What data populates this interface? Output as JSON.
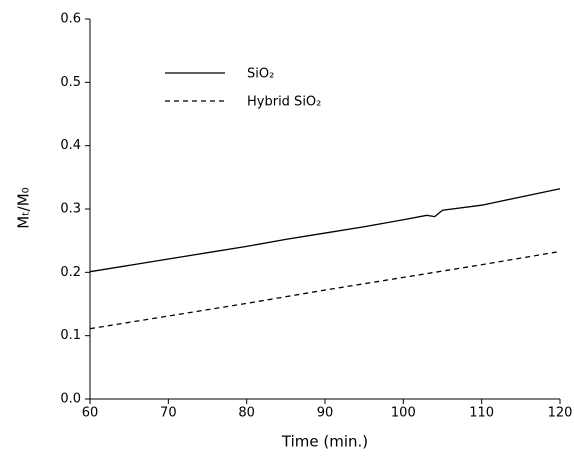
{
  "chart_data": {
    "type": "line",
    "x_label": "Time (min.)",
    "y_label": "Mₜ/M₀",
    "xlim": [
      60,
      120
    ],
    "xticks": [
      60,
      70,
      80,
      90,
      100,
      110,
      120
    ],
    "ylim": [
      0,
      0.6
    ],
    "yticks": [
      {
        "value": 0,
        "label": "0.0"
      },
      0.1,
      0.2,
      0.3,
      0.4,
      0.5,
      0.6
    ],
    "grid": false,
    "legend": "upper left",
    "series": [
      {
        "name": "SiO₂",
        "color": "#000000",
        "dash": "solid",
        "x": [
          60,
          65,
          70,
          75,
          80,
          85,
          90,
          95,
          100,
          103,
          104,
          105,
          110,
          115,
          120
        ],
        "values": [
          0.201,
          0.211,
          0.221,
          0.231,
          0.241,
          0.252,
          0.262,
          0.272,
          0.283,
          0.29,
          0.288,
          0.298,
          0.306,
          0.319,
          0.332
        ]
      },
      {
        "name": "Hybrid SiO₂",
        "color": "#000000",
        "dash": "dashed",
        "x": [
          60,
          70,
          80,
          90,
          100,
          110,
          120
        ],
        "values": [
          0.111,
          0.131,
          0.151,
          0.172,
          0.192,
          0.212,
          0.233
        ]
      }
    ]
  }
}
